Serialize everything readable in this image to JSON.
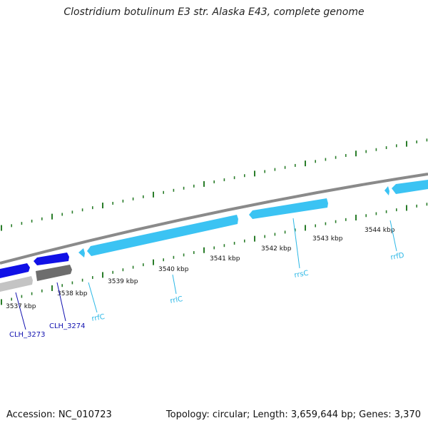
{
  "title": "Clostridium botulinum E3 str. Alaska E43, complete genome",
  "footer": {
    "accession": "Accession: NC_010723",
    "stats": "Topology: circular; Length: 3,659,644 bp; Genes: 3,370"
  },
  "colors": {
    "backbone": "#8a8a8a",
    "tick_green": "#2a7d2a",
    "rrna": "#3bc3f3",
    "cds": "#1010e6",
    "cds_gray_dark": "#6d6d6d",
    "cds_gray_light": "#c4c4c4",
    "label_blue": "#1212b0",
    "label_cyan": "#2db8e6"
  },
  "kbp_labels": [
    "3537 kbp",
    "3538 kbp",
    "3539 kbp",
    "3540 kbp",
    "3541 kbp",
    "3542 kbp",
    "3543 kbp",
    "3544 kbp"
  ],
  "genes": [
    {
      "name": "CLH_3273",
      "kind": "cds"
    },
    {
      "name": "CLH_3274",
      "kind": "cds"
    },
    {
      "name": "rrfC",
      "kind": "rrna"
    },
    {
      "name": "rrlC",
      "kind": "rrna"
    },
    {
      "name": "rrsC",
      "kind": "rrna"
    },
    {
      "name": "rrfD",
      "kind": "rrna"
    }
  ]
}
